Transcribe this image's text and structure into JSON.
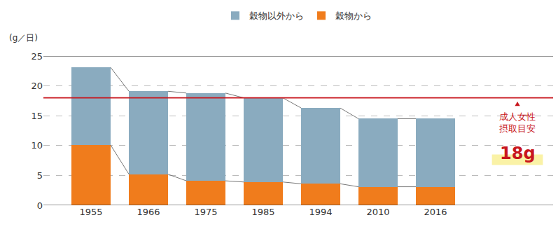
{
  "chart_data": {
    "type": "bar",
    "stacked": true,
    "categories": [
      "1955",
      "1966",
      "1975",
      "1985",
      "1994",
      "2010",
      "2016"
    ],
    "series": [
      {
        "name": "穀物から",
        "color": "#f07c1c",
        "values": [
          10.1,
          5.2,
          4.1,
          3.9,
          3.6,
          3.1,
          3.1
        ]
      },
      {
        "name": "穀物以外から",
        "color": "#8aabbf",
        "values": [
          13.0,
          13.9,
          14.7,
          14.1,
          12.7,
          11.4,
          11.4
        ]
      }
    ],
    "y_label": "(g／日)",
    "ylim": [
      0,
      25
    ],
    "yticks": [
      0,
      5,
      10,
      15,
      20,
      25
    ],
    "grid": true,
    "legend": "top",
    "target": {
      "value": 18,
      "label_lines": [
        "成人女性",
        "摂取目安"
      ],
      "value_label": "18g",
      "color": "#c8161d"
    }
  }
}
